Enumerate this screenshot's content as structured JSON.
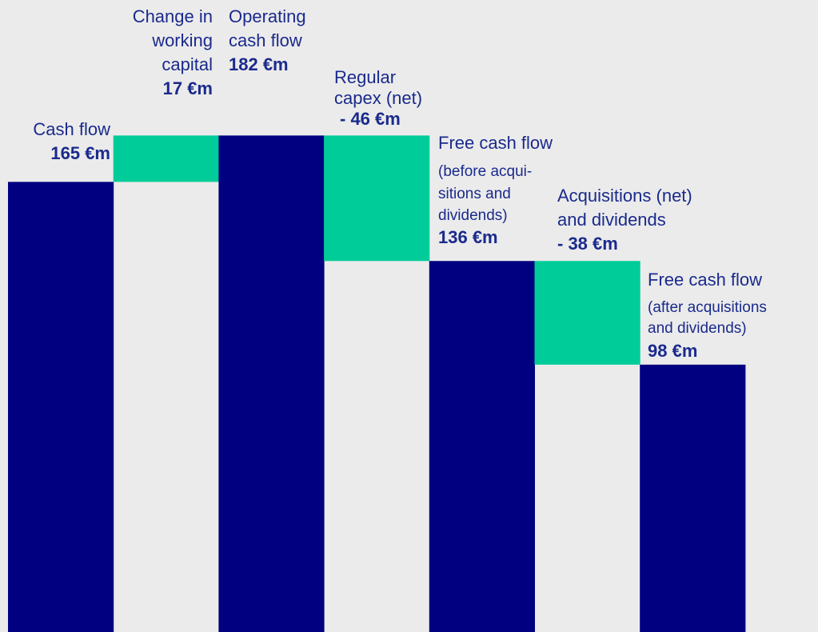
{
  "chart_data": {
    "type": "waterfall",
    "categories": [
      [
        "Cash flow"
      ],
      [
        "Change in",
        "working",
        "capital"
      ],
      [
        "Operating",
        "cash flow"
      ],
      [
        "Regular",
        "capex (net)"
      ],
      [
        "Free cash flow",
        "(before acqui-",
        "sitions and",
        "dividends)"
      ],
      [
        "Acquisitions (net)",
        "and dividends"
      ],
      [
        "Free cash flow",
        "(after acquisitions",
        "and dividends)"
      ]
    ],
    "values": [
      165,
      17,
      182,
      -46,
      136,
      -38,
      98
    ],
    "value_labels": [
      "165 €m",
      "17 €m",
      "182 €m",
      "- 46 €m",
      "136 €m",
      "- 38 €m",
      "98 €m"
    ],
    "measure": [
      "absolute",
      "relative",
      "absolute",
      "relative",
      "absolute",
      "relative",
      "absolute"
    ],
    "color": "#000080",
    "change_color": "#00cc99"
  }
}
